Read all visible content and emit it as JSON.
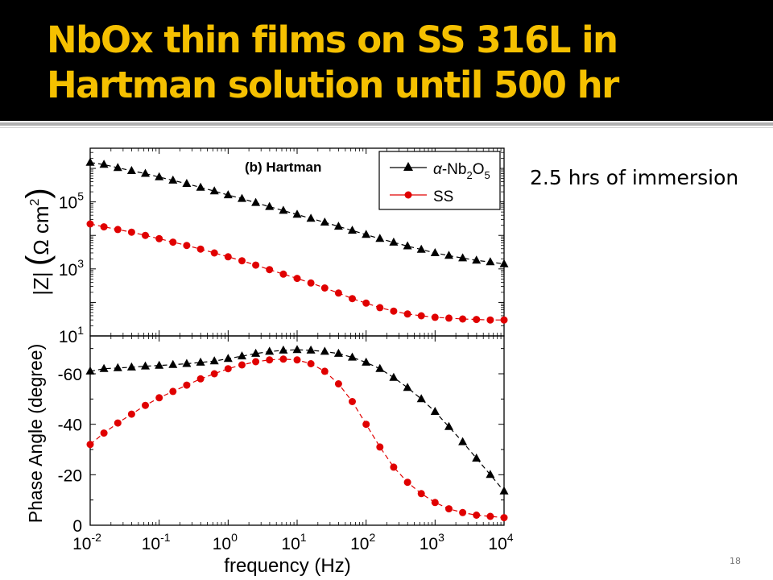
{
  "slide": {
    "title_line1": "NbOx thin films on SS 316L in",
    "title_line2": "Hartman solution until 500 hr",
    "caption": "2.5 hrs of immersion",
    "slide_number": "18",
    "colors": {
      "title_bar": "#000000",
      "title_text": "#f5c000",
      "series_nb2o5": "#000000",
      "series_ss": "#e00000"
    }
  },
  "chart_data": [
    {
      "type": "line",
      "panel": "impedance-modulus",
      "title": "(b) Hartman",
      "xlabel": "frequency (Hz)",
      "ylabel_parts": {
        "z": "|Z|",
        "omega": "Ω",
        "cm": "cm",
        "exp": "2"
      },
      "xscale": "log",
      "yscale": "log",
      "xlim": [
        0.01,
        10000
      ],
      "ylim": [
        10,
        4000000
      ],
      "x_ticks": [
        "10",
        "10",
        "10",
        "10",
        "10",
        "10",
        "10"
      ],
      "x_tick_exps": [
        "-2",
        "-1",
        "0",
        "1",
        "2",
        "3",
        "4"
      ],
      "x_tick_values": [
        0.01,
        0.1,
        1,
        10,
        100,
        1000,
        10000
      ],
      "y_ticks": [
        "10",
        "10",
        "10"
      ],
      "y_tick_exps": [
        "1",
        "3",
        "5"
      ],
      "y_tick_values": [
        10,
        1000,
        100000
      ],
      "legend": {
        "placement": "top-right",
        "entries": [
          {
            "prefix": "α",
            "text": "-Nb",
            "sub1": "2",
            "mid": "O",
            "sub2": "5"
          },
          {
            "text": "SS"
          }
        ]
      },
      "series": [
        {
          "key": "nb2o5",
          "marker": "triangle",
          "color": "#000000",
          "x": [
            0.01,
            0.01585,
            0.02512,
            0.03981,
            0.0631,
            0.1,
            0.1585,
            0.2512,
            0.3981,
            0.631,
            1,
            1.585,
            2.512,
            3.981,
            6.31,
            10,
            15.85,
            25.12,
            39.81,
            63.1,
            100,
            158.5,
            251.2,
            398.1,
            631,
            1000,
            1585,
            2512,
            3981,
            6310,
            10000
          ],
          "y": [
            1500000,
            1300000,
            1050000,
            850000,
            700000,
            550000,
            440000,
            350000,
            270000,
            210000,
            160000,
            125000,
            95000,
            72000,
            55000,
            42000,
            32000,
            24500,
            18500,
            14000,
            10500,
            8000,
            6200,
            4800,
            3800,
            3000,
            2500,
            2100,
            1800,
            1600,
            1400
          ]
        },
        {
          "key": "ss",
          "marker": "circle",
          "color": "#e00000",
          "x": [
            0.01,
            0.01585,
            0.02512,
            0.03981,
            0.0631,
            0.1,
            0.1585,
            0.2512,
            0.3981,
            0.631,
            1,
            1.585,
            2.512,
            3.981,
            6.31,
            10,
            15.85,
            25.12,
            39.81,
            63.1,
            100,
            158.5,
            251.2,
            398.1,
            631,
            1000,
            1585,
            2512,
            3981,
            6310,
            10000
          ],
          "y": [
            22000,
            18000,
            15000,
            12500,
            10000,
            8000,
            6300,
            5000,
            3900,
            3000,
            2300,
            1750,
            1300,
            950,
            700,
            520,
            380,
            270,
            190,
            130,
            95,
            70,
            55,
            45,
            40,
            36,
            34,
            32,
            31,
            30,
            30
          ]
        }
      ]
    },
    {
      "type": "line",
      "panel": "phase-angle",
      "xlabel": "frequency (Hz)",
      "ylabel": "Phase Angle (degree)",
      "xscale": "log",
      "xlim": [
        0.01,
        10000
      ],
      "ylim": [
        0,
        -75
      ],
      "y_ticks": [
        "0",
        "-20",
        "-40",
        "-60"
      ],
      "y_tick_values": [
        0,
        -20,
        -40,
        -60
      ],
      "series": [
        {
          "key": "nb2o5",
          "marker": "triangle",
          "color": "#000000",
          "x": [
            0.01,
            0.01585,
            0.02512,
            0.03981,
            0.0631,
            0.1,
            0.1585,
            0.2512,
            0.3981,
            0.631,
            1,
            1.585,
            2.512,
            3.981,
            6.31,
            10,
            15.85,
            25.12,
            39.81,
            63.1,
            100,
            158.5,
            251.2,
            398.1,
            631,
            1000,
            1585,
            2512,
            3981,
            6310,
            10000
          ],
          "y": [
            -61,
            -62,
            -62.3,
            -62.6,
            -63,
            -63.3,
            -63.6,
            -64,
            -64.5,
            -65,
            -66,
            -67,
            -68,
            -68.8,
            -69.3,
            -69.5,
            -69.3,
            -68.8,
            -68,
            -66.5,
            -64.5,
            -62,
            -58.5,
            -54.5,
            -50,
            -45,
            -39,
            -33,
            -26.5,
            -20,
            -13.5
          ]
        },
        {
          "key": "ss",
          "marker": "circle",
          "color": "#e00000",
          "x": [
            0.01,
            0.01585,
            0.02512,
            0.03981,
            0.0631,
            0.1,
            0.1585,
            0.2512,
            0.3981,
            0.631,
            1,
            1.585,
            2.512,
            3.981,
            6.31,
            10,
            15.85,
            25.12,
            39.81,
            63.1,
            100,
            158.5,
            251.2,
            398.1,
            631,
            1000,
            1585,
            2512,
            3981,
            6310,
            10000
          ],
          "y": [
            -32,
            -36.5,
            -40.5,
            -44,
            -47.5,
            -50.5,
            -53,
            -55.5,
            -58,
            -60,
            -62,
            -63.5,
            -64.8,
            -65.5,
            -65.8,
            -65.5,
            -64,
            -61,
            -56,
            -49,
            -40,
            -31,
            -23,
            -17,
            -12.5,
            -9,
            -6.5,
            -5,
            -4,
            -3.5,
            -3
          ]
        }
      ]
    }
  ]
}
